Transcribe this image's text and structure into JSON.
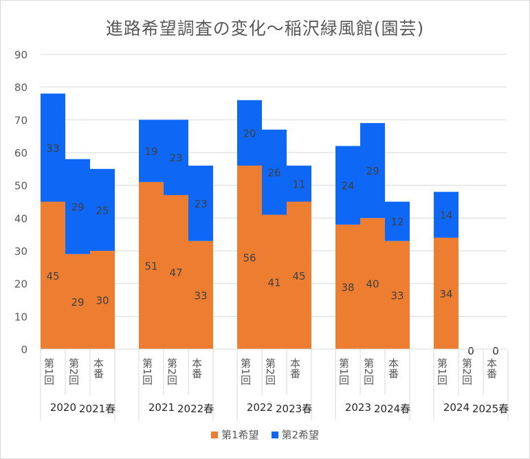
{
  "chart_data": {
    "type": "bar",
    "stacked": true,
    "title": "進路希望調査の変化～稲沢緑風館(園芸)",
    "ylim": [
      0,
      90
    ],
    "yticks": [
      0,
      10,
      20,
      30,
      40,
      50,
      60,
      70,
      80,
      90
    ],
    "grid": true,
    "legend_position": "bottom",
    "groups": [
      {
        "label": "2020",
        "spring_label": "2021春",
        "categories": [
          "第1回",
          "第2回",
          "本番"
        ]
      },
      {
        "label": "2021",
        "spring_label": "2022春",
        "categories": [
          "第1回",
          "第2回",
          "本番"
        ]
      },
      {
        "label": "2022",
        "spring_label": "2023春",
        "categories": [
          "第1回",
          "第2回",
          "本番"
        ]
      },
      {
        "label": "2023",
        "spring_label": "2024春",
        "categories": [
          "第1回",
          "第2回",
          "本番"
        ]
      },
      {
        "label": "2024",
        "spring_label": "2025春",
        "categories": [
          "第1回",
          "第2回",
          "本番"
        ]
      }
    ],
    "series": [
      {
        "name": "第1希望",
        "color": "#ed7d31",
        "values": [
          45,
          29,
          30,
          51,
          47,
          33,
          56,
          41,
          45,
          38,
          40,
          33,
          34,
          0,
          0
        ]
      },
      {
        "name": "第2希望",
        "color": "#0e67f5",
        "values": [
          33,
          29,
          25,
          19,
          23,
          23,
          20,
          26,
          11,
          24,
          29,
          12,
          14,
          0,
          0
        ]
      }
    ]
  }
}
